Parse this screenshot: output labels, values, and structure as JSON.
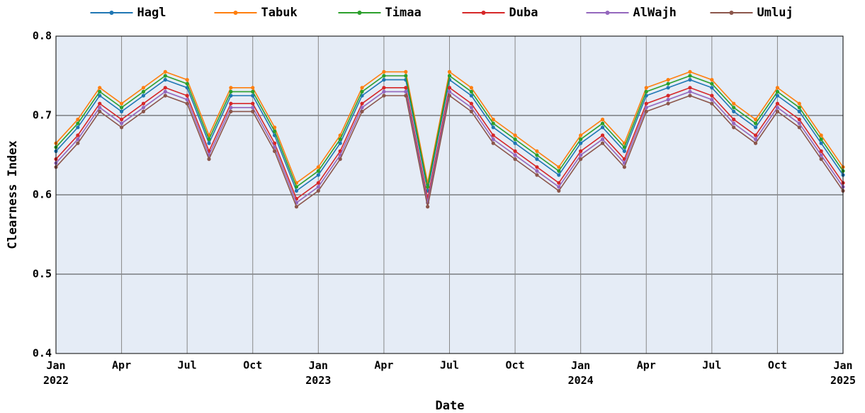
{
  "chart_data": {
    "type": "line",
    "x_label": "Date",
    "y_label": "Clearness Index",
    "x": [
      "2022-01",
      "2022-02",
      "2022-03",
      "2022-04",
      "2022-05",
      "2022-06",
      "2022-07",
      "2022-08",
      "2022-09",
      "2022-10",
      "2022-11",
      "2022-12",
      "2023-01",
      "2023-02",
      "2023-03",
      "2023-04",
      "2023-05",
      "2023-06",
      "2023-07",
      "2023-08",
      "2023-09",
      "2023-10",
      "2023-11",
      "2023-12",
      "2024-01",
      "2024-02",
      "2024-03",
      "2024-04",
      "2024-05",
      "2024-06",
      "2024-07",
      "2024-08",
      "2024-09",
      "2024-10",
      "2024-11",
      "2024-12",
      "2025-01"
    ],
    "series": [
      {
        "name": "Hagl",
        "color": "#1f77b4",
        "values": [
          0.655,
          0.685,
          0.725,
          0.705,
          0.725,
          0.745,
          0.735,
          0.665,
          0.725,
          0.725,
          0.675,
          0.605,
          0.625,
          0.665,
          0.725,
          0.745,
          0.745,
          0.605,
          0.745,
          0.725,
          0.685,
          0.665,
          0.645,
          0.625,
          0.665,
          0.685,
          0.655,
          0.725,
          0.735,
          0.745,
          0.735,
          0.705,
          0.685,
          0.725,
          0.705,
          0.665,
          0.625
        ]
      },
      {
        "name": "Tabuk",
        "color": "#ff7f0e",
        "values": [
          0.665,
          0.695,
          0.735,
          0.715,
          0.735,
          0.755,
          0.745,
          0.675,
          0.735,
          0.735,
          0.685,
          0.615,
          0.635,
          0.675,
          0.735,
          0.755,
          0.755,
          0.615,
          0.755,
          0.735,
          0.695,
          0.675,
          0.655,
          0.635,
          0.675,
          0.695,
          0.665,
          0.735,
          0.745,
          0.755,
          0.745,
          0.715,
          0.695,
          0.735,
          0.715,
          0.675,
          0.635
        ]
      },
      {
        "name": "Timaa",
        "color": "#2ca02c",
        "values": [
          0.66,
          0.69,
          0.73,
          0.71,
          0.73,
          0.75,
          0.74,
          0.67,
          0.73,
          0.73,
          0.68,
          0.61,
          0.63,
          0.67,
          0.73,
          0.75,
          0.75,
          0.61,
          0.75,
          0.73,
          0.69,
          0.67,
          0.65,
          0.63,
          0.67,
          0.69,
          0.66,
          0.73,
          0.74,
          0.75,
          0.74,
          0.71,
          0.69,
          0.73,
          0.71,
          0.67,
          0.63
        ]
      },
      {
        "name": "Duba",
        "color": "#d62728",
        "values": [
          0.645,
          0.675,
          0.715,
          0.695,
          0.715,
          0.735,
          0.725,
          0.655,
          0.715,
          0.715,
          0.665,
          0.595,
          0.615,
          0.655,
          0.715,
          0.735,
          0.735,
          0.595,
          0.735,
          0.715,
          0.675,
          0.655,
          0.635,
          0.615,
          0.655,
          0.675,
          0.645,
          0.715,
          0.725,
          0.735,
          0.725,
          0.695,
          0.675,
          0.715,
          0.695,
          0.655,
          0.615
        ]
      },
      {
        "name": "AlWajh",
        "color": "#9467bd",
        "values": [
          0.64,
          0.67,
          0.71,
          0.69,
          0.71,
          0.73,
          0.72,
          0.65,
          0.71,
          0.71,
          0.66,
          0.59,
          0.61,
          0.65,
          0.71,
          0.73,
          0.73,
          0.59,
          0.73,
          0.71,
          0.67,
          0.65,
          0.63,
          0.61,
          0.65,
          0.67,
          0.64,
          0.71,
          0.72,
          0.73,
          0.72,
          0.69,
          0.67,
          0.71,
          0.69,
          0.65,
          0.61
        ]
      },
      {
        "name": "Umluj",
        "color": "#8c564b",
        "values": [
          0.635,
          0.665,
          0.705,
          0.685,
          0.705,
          0.725,
          0.715,
          0.645,
          0.705,
          0.705,
          0.655,
          0.585,
          0.605,
          0.645,
          0.705,
          0.725,
          0.725,
          0.585,
          0.725,
          0.705,
          0.665,
          0.645,
          0.625,
          0.605,
          0.645,
          0.665,
          0.635,
          0.705,
          0.715,
          0.725,
          0.715,
          0.685,
          0.665,
          0.705,
          0.685,
          0.645,
          0.605
        ]
      }
    ],
    "xlim": [
      "2022-01",
      "2025-01"
    ],
    "xticks": [
      {
        "value": "2022-01",
        "label": "Jan\n2022"
      },
      {
        "value": "2022-04",
        "label": "Apr"
      },
      {
        "value": "2022-07",
        "label": "Jul"
      },
      {
        "value": "2022-10",
        "label": "Oct"
      },
      {
        "value": "2023-01",
        "label": "Jan\n2023"
      },
      {
        "value": "2023-04",
        "label": "Apr"
      },
      {
        "value": "2023-07",
        "label": "Jul"
      },
      {
        "value": "2023-10",
        "label": "Oct"
      },
      {
        "value": "2024-01",
        "label": "Jan\n2024"
      },
      {
        "value": "2024-04",
        "label": "Apr"
      },
      {
        "value": "2024-07",
        "label": "Jul"
      },
      {
        "value": "2024-10",
        "label": "Oct"
      },
      {
        "value": "2025-01",
        "label": "Jan\n2025"
      }
    ],
    "ylim": [
      0.4,
      0.8
    ],
    "yticks": [
      0.4,
      0.5,
      0.6,
      0.7,
      0.8
    ],
    "grid": true,
    "legend": "top"
  }
}
